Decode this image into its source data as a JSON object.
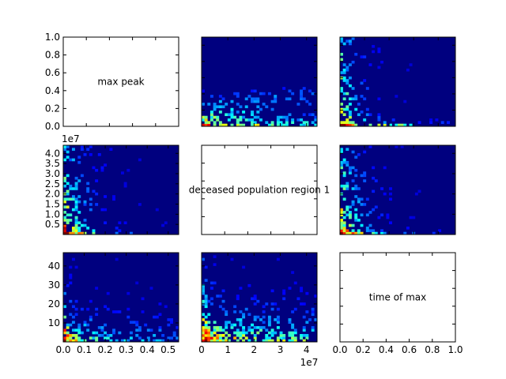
{
  "chart_data": {
    "type": "heatmap",
    "title": "",
    "colormap": "jet",
    "panels": [
      {
        "row": 0,
        "col": 0,
        "kind": "label",
        "text": "max peak",
        "xlim": [
          0,
          1
        ],
        "ylim": [
          0,
          1
        ],
        "yticks": [
          0.0,
          0.2,
          0.4,
          0.6,
          0.8,
          1.0
        ],
        "yticklabels": [
          "0.0",
          "0.2",
          "0.4",
          "0.6",
          "0.8",
          "1.0"
        ]
      },
      {
        "row": 0,
        "col": 1,
        "kind": "heatmap",
        "x": "deceased population region 1",
        "y": "max peak",
        "pattern": "wide"
      },
      {
        "row": 0,
        "col": 2,
        "kind": "heatmap",
        "x": "time of max",
        "y": "max peak",
        "pattern": "lowx"
      },
      {
        "row": 1,
        "col": 0,
        "kind": "heatmap",
        "x": "max peak",
        "y": "deceased population region 1",
        "pattern": "lowx_tall",
        "yticks": [
          0.5,
          1.0,
          1.5,
          2.0,
          2.5,
          3.0,
          3.5,
          4.0
        ],
        "yticklabels": [
          "0.5",
          "1.0",
          "1.5",
          "2.0",
          "2.5",
          "3.0",
          "3.5",
          "4.0"
        ],
        "yoffset": "1e7"
      },
      {
        "row": 1,
        "col": 1,
        "kind": "label",
        "text": "deceased population region 1"
      },
      {
        "row": 1,
        "col": 2,
        "kind": "heatmap",
        "x": "time of max",
        "y": "deceased population region 1",
        "pattern": "lowx_tall"
      },
      {
        "row": 2,
        "col": 0,
        "kind": "heatmap",
        "x": "max peak",
        "y": "time of max",
        "pattern": "lowy",
        "yticks": [
          10,
          20,
          30,
          40
        ],
        "yticklabels": [
          "10",
          "20",
          "30",
          "40"
        ],
        "xticks": [
          0.0,
          0.1,
          0.2,
          0.3,
          0.4,
          0.5
        ],
        "xticklabels": [
          "0.0",
          "0.1",
          "0.2",
          "0.3",
          "0.4",
          "0.5"
        ]
      },
      {
        "row": 2,
        "col": 1,
        "kind": "heatmap",
        "x": "deceased population region 1",
        "y": "time of max",
        "pattern": "lowy_wide",
        "xticks": [
          0,
          1,
          2,
          3,
          4
        ],
        "xticklabels": [
          "0",
          "1",
          "2",
          "3",
          "4"
        ],
        "xoffset": "1e7"
      },
      {
        "row": 2,
        "col": 2,
        "kind": "label",
        "text": "time of max",
        "xticks": [
          0.0,
          0.2,
          0.4,
          0.6,
          0.8,
          1.0
        ],
        "xticklabels": [
          "0.0",
          "0.2",
          "0.4",
          "0.6",
          "0.8",
          "1.0"
        ]
      }
    ],
    "axis_ranges": {
      "max peak": [
        0,
        0.55
      ],
      "deceased population region 1": [
        0,
        4.4
      ],
      "time of max": [
        0,
        47
      ]
    },
    "colors": {
      "background": "#00007f",
      "low": "#0000ff",
      "mid": "#00ffff",
      "high": "#7fff7f"
    }
  }
}
